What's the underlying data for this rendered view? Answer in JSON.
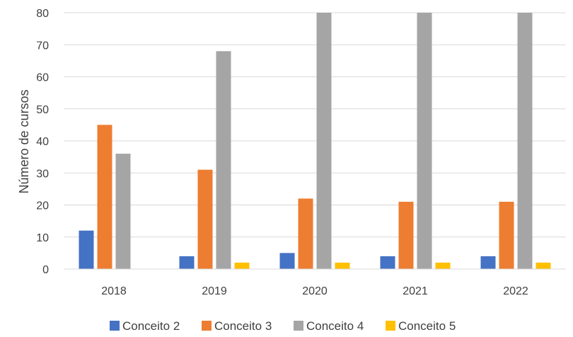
{
  "chart_data": {
    "type": "bar",
    "title": "",
    "xlabel": "",
    "ylabel": "Número de cursos",
    "ylim": [
      0,
      80
    ],
    "yticks": [
      0,
      10,
      20,
      30,
      40,
      50,
      60,
      70,
      80
    ],
    "grid": true,
    "legend_position": "bottom",
    "categories": [
      "2018",
      "2019",
      "2020",
      "2021",
      "2022"
    ],
    "series": [
      {
        "name": "Conceito 2",
        "color": "#4472C4",
        "values": [
          12,
          4,
          5,
          4,
          4
        ]
      },
      {
        "name": "Conceito 3",
        "color": "#ED7D31",
        "values": [
          45,
          31,
          22,
          21,
          21
        ]
      },
      {
        "name": "Conceito 4",
        "color": "#A5A5A5",
        "values": [
          36,
          68,
          80,
          80,
          80
        ]
      },
      {
        "name": "Conceito 5",
        "color": "#FFC000",
        "values": [
          0,
          2,
          2,
          2,
          2
        ]
      }
    ]
  }
}
